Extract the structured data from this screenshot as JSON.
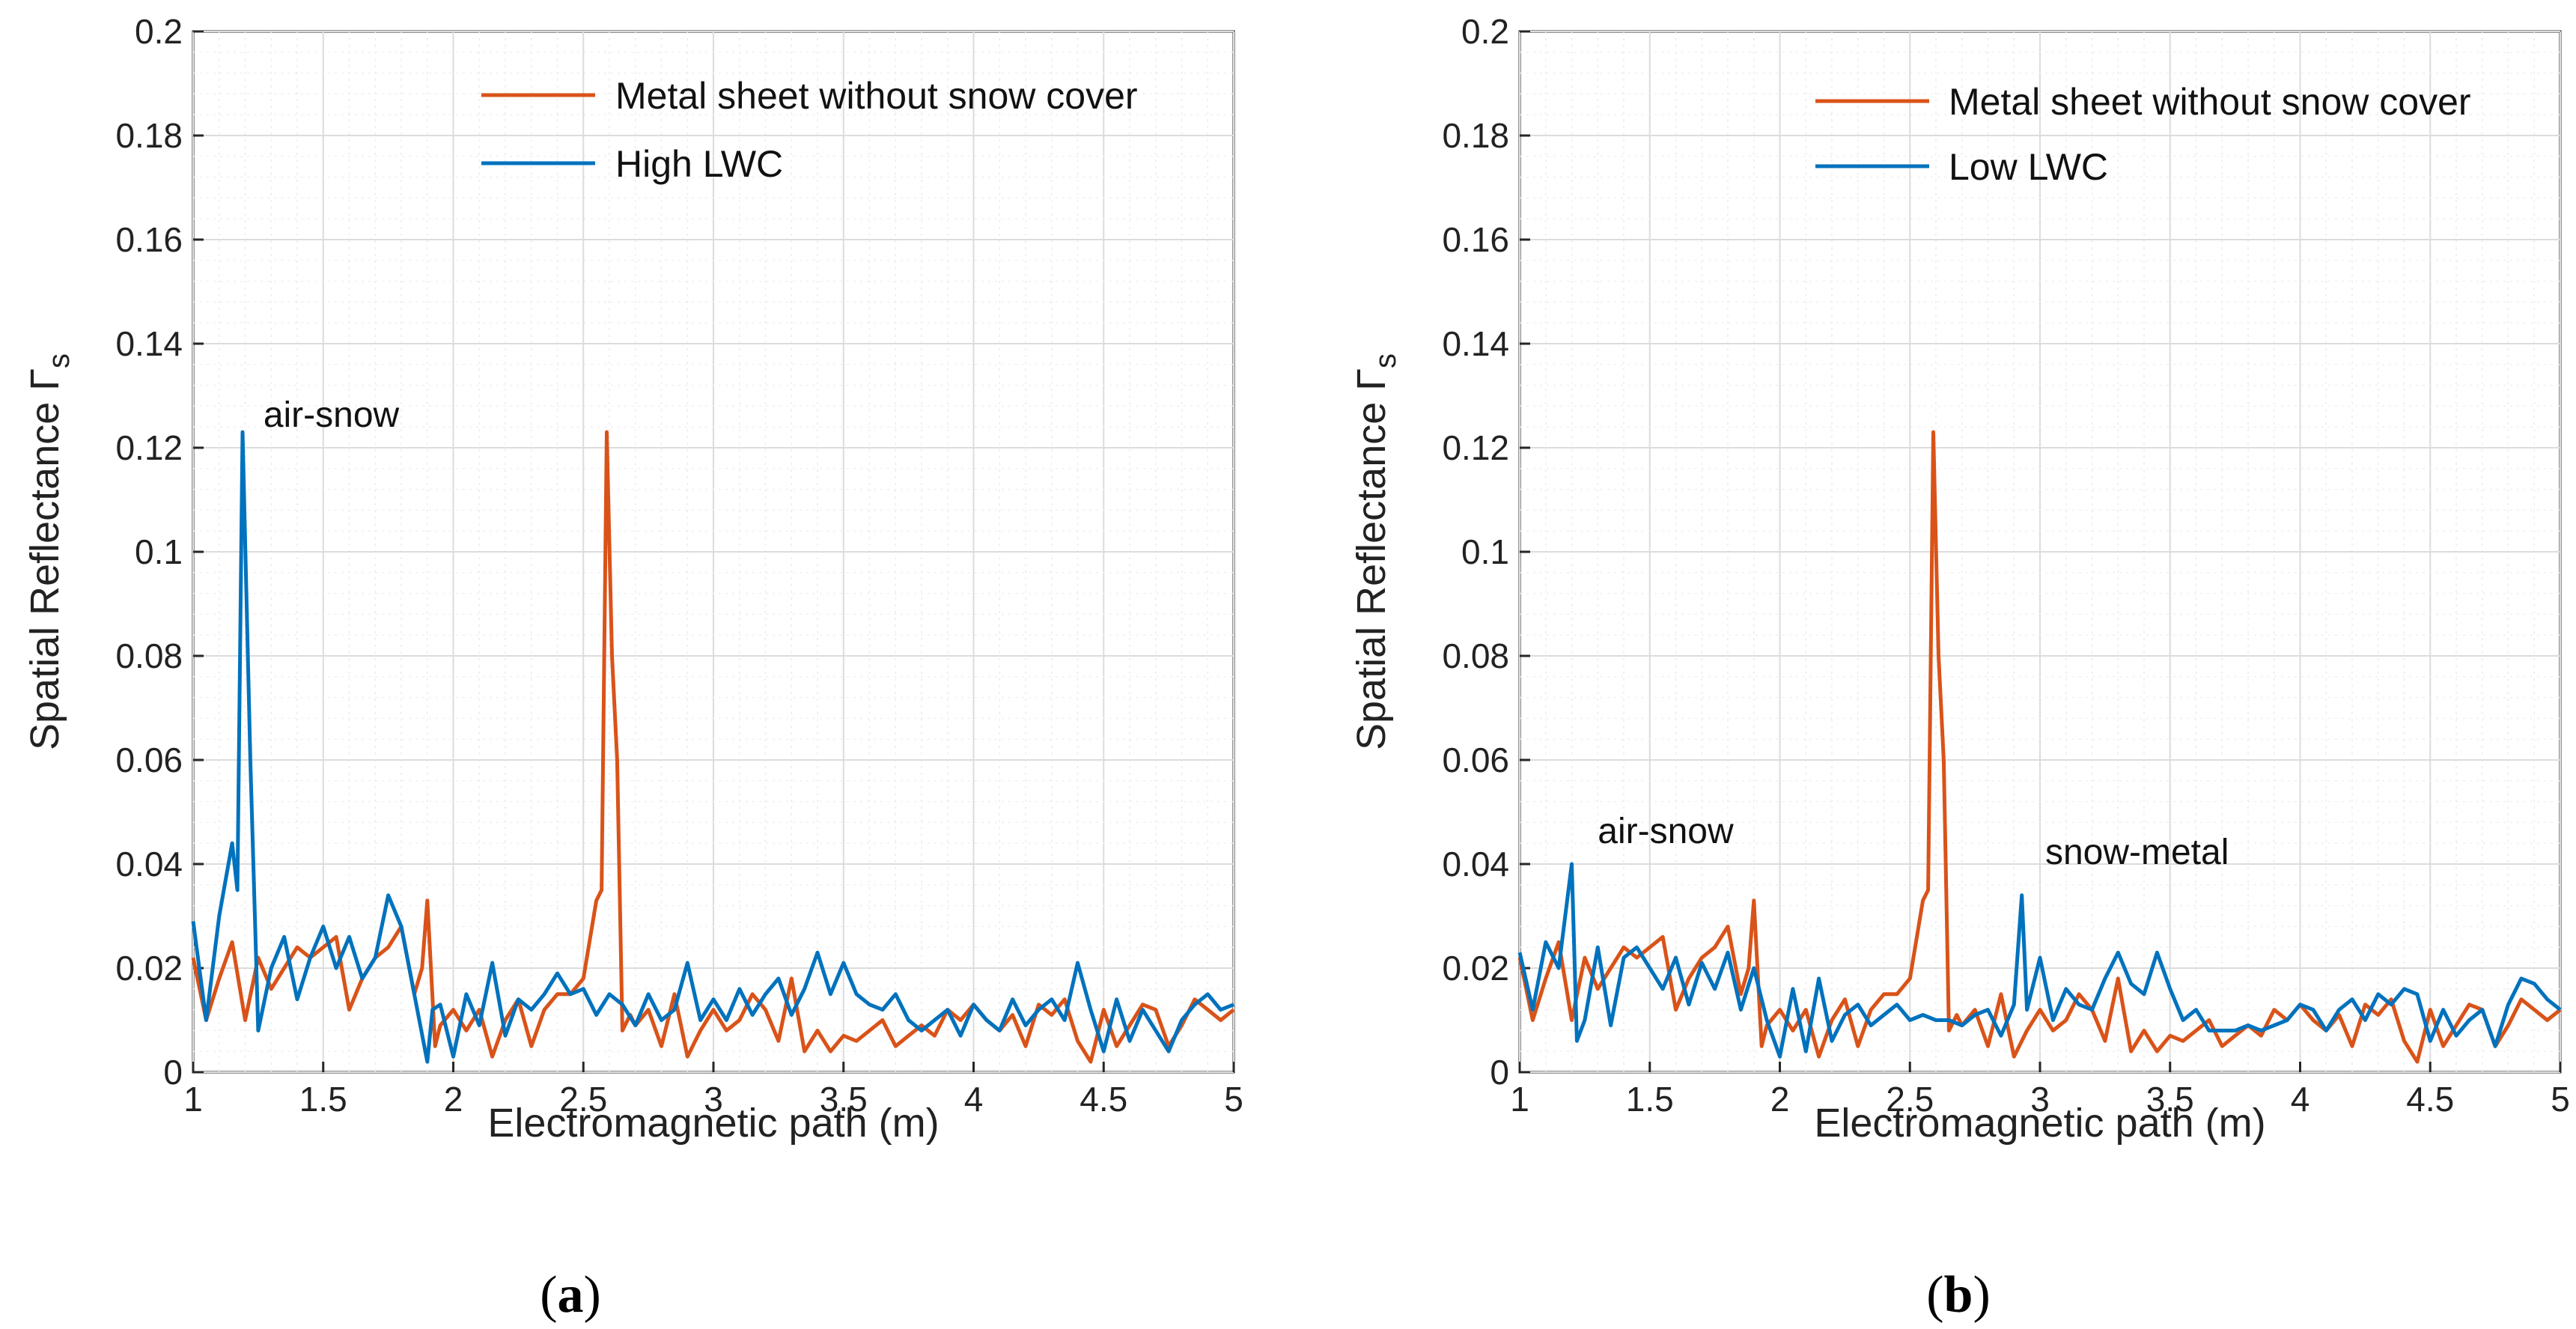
{
  "chart_data": [
    {
      "type": "line",
      "panel_label": "a",
      "xlabel": "Electromagnetic path (m)",
      "ylabel": "Spatial Reflectance Γ",
      "ylabel_sub": "s",
      "xlim": [
        1,
        5
      ],
      "ylim": [
        0,
        0.2
      ],
      "xticks": [
        "1",
        "1.5",
        "2",
        "2.5",
        "3",
        "3.5",
        "4",
        "4.5",
        "5"
      ],
      "yticks": [
        "0",
        "0.02",
        "0.04",
        "0.06",
        "0.08",
        "0.1",
        "0.12",
        "0.14",
        "0.16",
        "0.18",
        "0.2"
      ],
      "grid": true,
      "legend_position": "top-right",
      "annotations": [
        {
          "text": "air-snow",
          "x": 1.27,
          "y": 0.124
        }
      ],
      "series": [
        {
          "name": "Metal sheet without snow cover",
          "color": "#d95319",
          "x": [
            1.0,
            1.05,
            1.1,
            1.15,
            1.2,
            1.25,
            1.3,
            1.35,
            1.4,
            1.45,
            1.5,
            1.55,
            1.6,
            1.65,
            1.7,
            1.75,
            1.8,
            1.85,
            1.88,
            1.9,
            1.93,
            1.95,
            2.0,
            2.05,
            2.1,
            2.15,
            2.2,
            2.25,
            2.3,
            2.35,
            2.4,
            2.45,
            2.5,
            2.55,
            2.57,
            2.59,
            2.61,
            2.63,
            2.65,
            2.68,
            2.7,
            2.75,
            2.8,
            2.85,
            2.9,
            2.95,
            3.0,
            3.05,
            3.1,
            3.15,
            3.2,
            3.25,
            3.3,
            3.35,
            3.4,
            3.45,
            3.5,
            3.55,
            3.6,
            3.65,
            3.7,
            3.75,
            3.8,
            3.85,
            3.9,
            3.95,
            4.0,
            4.05,
            4.1,
            4.15,
            4.2,
            4.25,
            4.3,
            4.35,
            4.4,
            4.45,
            4.5,
            4.55,
            4.6,
            4.65,
            4.7,
            4.75,
            4.8,
            4.85,
            4.9,
            4.95,
            5.0
          ],
          "y": [
            0.022,
            0.01,
            0.018,
            0.025,
            0.01,
            0.022,
            0.016,
            0.02,
            0.024,
            0.022,
            0.024,
            0.026,
            0.012,
            0.018,
            0.022,
            0.024,
            0.028,
            0.015,
            0.02,
            0.033,
            0.005,
            0.009,
            0.012,
            0.008,
            0.012,
            0.003,
            0.01,
            0.014,
            0.005,
            0.012,
            0.015,
            0.015,
            0.018,
            0.033,
            0.035,
            0.123,
            0.08,
            0.06,
            0.008,
            0.011,
            0.009,
            0.012,
            0.005,
            0.015,
            0.003,
            0.008,
            0.012,
            0.008,
            0.01,
            0.015,
            0.012,
            0.006,
            0.018,
            0.004,
            0.008,
            0.004,
            0.007,
            0.006,
            0.008,
            0.01,
            0.005,
            0.007,
            0.009,
            0.007,
            0.012,
            0.01,
            0.013,
            0.01,
            0.008,
            0.011,
            0.005,
            0.013,
            0.011,
            0.014,
            0.006,
            0.002,
            0.012,
            0.005,
            0.009,
            0.013,
            0.012,
            0.005,
            0.009,
            0.014,
            0.012,
            0.01,
            0.012
          ]
        },
        {
          "name": "High LWC",
          "color": "#0072bd",
          "x": [
            1.0,
            1.05,
            1.1,
            1.15,
            1.17,
            1.19,
            1.22,
            1.25,
            1.3,
            1.35,
            1.4,
            1.45,
            1.5,
            1.55,
            1.6,
            1.65,
            1.7,
            1.75,
            1.8,
            1.85,
            1.9,
            1.92,
            1.95,
            2.0,
            2.05,
            2.1,
            2.15,
            2.2,
            2.25,
            2.3,
            2.35,
            2.4,
            2.45,
            2.5,
            2.55,
            2.6,
            2.65,
            2.7,
            2.75,
            2.8,
            2.85,
            2.9,
            2.95,
            3.0,
            3.05,
            3.1,
            3.15,
            3.2,
            3.25,
            3.3,
            3.35,
            3.4,
            3.45,
            3.5,
            3.55,
            3.6,
            3.65,
            3.7,
            3.75,
            3.8,
            3.85,
            3.9,
            3.95,
            4.0,
            4.05,
            4.1,
            4.15,
            4.2,
            4.25,
            4.3,
            4.35,
            4.4,
            4.45,
            4.5,
            4.55,
            4.6,
            4.65,
            4.7,
            4.75,
            4.8,
            4.85,
            4.9,
            4.95,
            5.0
          ],
          "y": [
            0.029,
            0.01,
            0.03,
            0.044,
            0.035,
            0.123,
            0.06,
            0.008,
            0.02,
            0.026,
            0.014,
            0.022,
            0.028,
            0.02,
            0.026,
            0.018,
            0.022,
            0.034,
            0.028,
            0.015,
            0.002,
            0.012,
            0.013,
            0.003,
            0.015,
            0.009,
            0.021,
            0.007,
            0.014,
            0.012,
            0.015,
            0.019,
            0.015,
            0.016,
            0.011,
            0.015,
            0.013,
            0.009,
            0.015,
            0.01,
            0.012,
            0.021,
            0.01,
            0.014,
            0.01,
            0.016,
            0.011,
            0.015,
            0.018,
            0.011,
            0.016,
            0.023,
            0.015,
            0.021,
            0.015,
            0.013,
            0.012,
            0.015,
            0.01,
            0.008,
            0.01,
            0.012,
            0.007,
            0.013,
            0.01,
            0.008,
            0.014,
            0.009,
            0.012,
            0.014,
            0.01,
            0.021,
            0.012,
            0.004,
            0.014,
            0.006,
            0.012,
            0.008,
            0.004,
            0.01,
            0.013,
            0.015,
            0.012,
            0.013
          ]
        }
      ]
    },
    {
      "type": "line",
      "panel_label": "b",
      "xlabel": "Electromagnetic path (m)",
      "ylabel": "Spatial Reflectance Γ",
      "ylabel_sub": "s",
      "xlim": [
        1,
        5
      ],
      "ylim": [
        0,
        0.2
      ],
      "xticks": [
        "1",
        "1.5",
        "2",
        "2.5",
        "3",
        "3.5",
        "4",
        "4.5",
        "5"
      ],
      "yticks": [
        "0",
        "0.02",
        "0.04",
        "0.06",
        "0.08",
        "0.1",
        "0.12",
        "0.14",
        "0.16",
        "0.18",
        "0.2"
      ],
      "grid": true,
      "legend_position": "top-right",
      "annotations": [
        {
          "text": "air-snow",
          "x": 1.3,
          "y": 0.044
        },
        {
          "text": "snow-metal",
          "x": 3.02,
          "y": 0.04
        }
      ],
      "series": [
        {
          "name": "Metal sheet without snow cover",
          "color": "#d95319",
          "x": [
            1.0,
            1.05,
            1.1,
            1.15,
            1.2,
            1.25,
            1.3,
            1.35,
            1.4,
            1.45,
            1.5,
            1.55,
            1.6,
            1.65,
            1.7,
            1.75,
            1.8,
            1.85,
            1.88,
            1.9,
            1.93,
            1.95,
            2.0,
            2.05,
            2.1,
            2.15,
            2.2,
            2.25,
            2.3,
            2.35,
            2.4,
            2.45,
            2.5,
            2.55,
            2.57,
            2.59,
            2.61,
            2.63,
            2.65,
            2.68,
            2.7,
            2.75,
            2.8,
            2.85,
            2.9,
            2.95,
            3.0,
            3.05,
            3.1,
            3.15,
            3.2,
            3.25,
            3.3,
            3.35,
            3.4,
            3.45,
            3.5,
            3.55,
            3.6,
            3.65,
            3.7,
            3.75,
            3.8,
            3.85,
            3.9,
            3.95,
            4.0,
            4.05,
            4.1,
            4.15,
            4.2,
            4.25,
            4.3,
            4.35,
            4.4,
            4.45,
            4.5,
            4.55,
            4.6,
            4.65,
            4.7,
            4.75,
            4.8,
            4.85,
            4.9,
            4.95,
            5.0
          ],
          "y": [
            0.022,
            0.01,
            0.018,
            0.025,
            0.01,
            0.022,
            0.016,
            0.02,
            0.024,
            0.022,
            0.024,
            0.026,
            0.012,
            0.018,
            0.022,
            0.024,
            0.028,
            0.015,
            0.02,
            0.033,
            0.005,
            0.009,
            0.012,
            0.008,
            0.012,
            0.003,
            0.01,
            0.014,
            0.005,
            0.012,
            0.015,
            0.015,
            0.018,
            0.033,
            0.035,
            0.123,
            0.08,
            0.06,
            0.008,
            0.011,
            0.009,
            0.012,
            0.005,
            0.015,
            0.003,
            0.008,
            0.012,
            0.008,
            0.01,
            0.015,
            0.012,
            0.006,
            0.018,
            0.004,
            0.008,
            0.004,
            0.007,
            0.006,
            0.008,
            0.01,
            0.005,
            0.007,
            0.009,
            0.007,
            0.012,
            0.01,
            0.013,
            0.01,
            0.008,
            0.011,
            0.005,
            0.013,
            0.011,
            0.014,
            0.006,
            0.002,
            0.012,
            0.005,
            0.009,
            0.013,
            0.012,
            0.005,
            0.009,
            0.014,
            0.012,
            0.01,
            0.012
          ]
        },
        {
          "name": "Low LWC",
          "color": "#0072bd",
          "x": [
            1.0,
            1.05,
            1.1,
            1.15,
            1.2,
            1.22,
            1.25,
            1.3,
            1.35,
            1.4,
            1.45,
            1.5,
            1.55,
            1.6,
            1.65,
            1.7,
            1.75,
            1.8,
            1.85,
            1.9,
            1.95,
            2.0,
            2.05,
            2.1,
            2.15,
            2.2,
            2.25,
            2.3,
            2.35,
            2.4,
            2.45,
            2.5,
            2.55,
            2.6,
            2.65,
            2.7,
            2.75,
            2.8,
            2.85,
            2.9,
            2.93,
            2.95,
            3.0,
            3.05,
            3.1,
            3.15,
            3.2,
            3.25,
            3.3,
            3.35,
            3.4,
            3.45,
            3.5,
            3.55,
            3.6,
            3.65,
            3.7,
            3.75,
            3.8,
            3.85,
            3.9,
            3.95,
            4.0,
            4.05,
            4.1,
            4.15,
            4.2,
            4.25,
            4.3,
            4.35,
            4.4,
            4.45,
            4.5,
            4.55,
            4.6,
            4.65,
            4.7,
            4.75,
            4.8,
            4.85,
            4.9,
            4.95,
            5.0
          ],
          "y": [
            0.023,
            0.012,
            0.025,
            0.02,
            0.04,
            0.006,
            0.01,
            0.024,
            0.009,
            0.022,
            0.024,
            0.02,
            0.016,
            0.022,
            0.013,
            0.021,
            0.016,
            0.023,
            0.012,
            0.02,
            0.01,
            0.003,
            0.016,
            0.004,
            0.018,
            0.006,
            0.011,
            0.013,
            0.009,
            0.011,
            0.013,
            0.01,
            0.011,
            0.01,
            0.01,
            0.009,
            0.011,
            0.012,
            0.007,
            0.013,
            0.034,
            0.012,
            0.022,
            0.01,
            0.016,
            0.013,
            0.012,
            0.018,
            0.023,
            0.017,
            0.015,
            0.023,
            0.016,
            0.01,
            0.012,
            0.008,
            0.008,
            0.008,
            0.009,
            0.008,
            0.009,
            0.01,
            0.013,
            0.012,
            0.008,
            0.012,
            0.014,
            0.01,
            0.015,
            0.013,
            0.016,
            0.015,
            0.006,
            0.012,
            0.007,
            0.01,
            0.012,
            0.005,
            0.013,
            0.018,
            0.017,
            0.014,
            0.012
          ]
        }
      ]
    }
  ]
}
